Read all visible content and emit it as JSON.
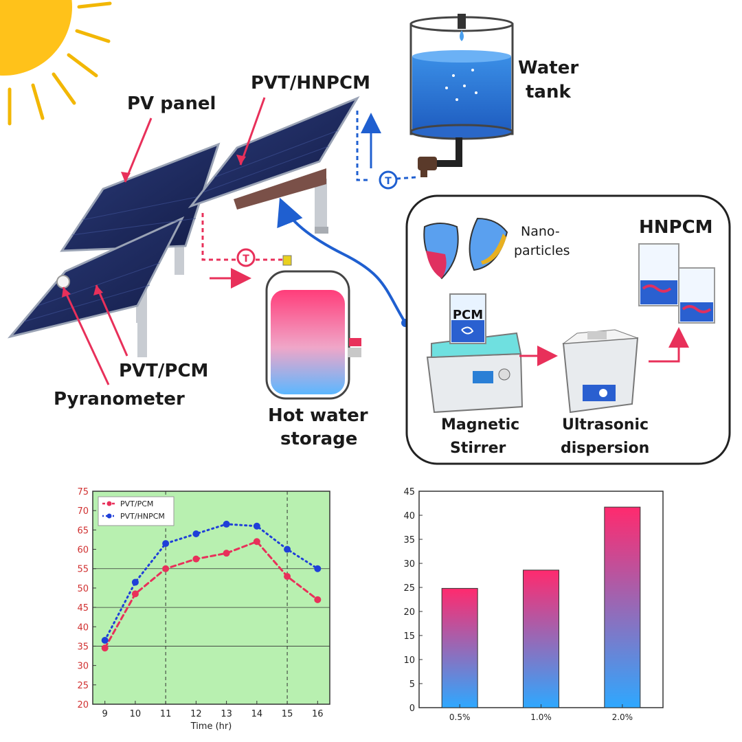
{
  "labels": {
    "pv_panel": "PV panel",
    "pvt_hnpcm": "PVT/HNPCM",
    "water_tank_1": "Water",
    "water_tank_2": "tank",
    "pvt_pcm": "PVT/PCM",
    "pyranometer": "Pyranometer",
    "hot_water_1": "Hot water",
    "hot_water_2": "storage",
    "nano_1": "Nano-",
    "nano_2": "particles",
    "hnpcm": "HNPCM",
    "pcm": "PCM",
    "stirrer_1": "Magnetic",
    "stirrer_2": "Stirrer",
    "ultra_1": "Ultrasonic",
    "ultra_2": "dispersion",
    "thermo": "T"
  },
  "colors": {
    "panel": "#1f2a5a",
    "red_accent": "#e8305a",
    "blue_accent": "#1f5fd0",
    "chart_bg": "#b8f0b0",
    "bar_top": "#ff2a6e",
    "bar_bottom": "#2ea8ff"
  },
  "chart_data": [
    {
      "type": "line",
      "xlabel": "Time (hr)",
      "ylabel": "",
      "x": [
        9,
        10,
        11,
        12,
        13,
        14,
        15,
        16
      ],
      "xlim": [
        8.6,
        16.4
      ],
      "ylim": [
        20,
        75
      ],
      "yticks": [
        20,
        25,
        30,
        35,
        40,
        45,
        50,
        55,
        60,
        65,
        70,
        75
      ],
      "xticks": [
        9,
        10,
        11,
        12,
        13,
        14,
        15,
        16
      ],
      "grid": true,
      "legend_position": "top-left",
      "series": [
        {
          "name": "PVT/PCM",
          "color": "#e8305a",
          "values": [
            34.5,
            48.5,
            55,
            57.5,
            59,
            62,
            53,
            47
          ]
        },
        {
          "name": "PVT/HNPCM",
          "color": "#1f3fd8",
          "values": [
            36.5,
            51.5,
            61.5,
            64,
            66.5,
            66,
            60,
            55
          ]
        }
      ]
    },
    {
      "type": "bar",
      "xlabel": "",
      "ylabel": "",
      "categories": [
        "0.5%",
        "1.0%",
        "2.0%"
      ],
      "values": [
        24.8,
        28.6,
        41.7
      ],
      "ylim": [
        0,
        45
      ],
      "yticks": [
        0,
        5,
        10,
        15,
        20,
        25,
        30,
        35,
        40,
        45
      ],
      "grid": false
    }
  ]
}
